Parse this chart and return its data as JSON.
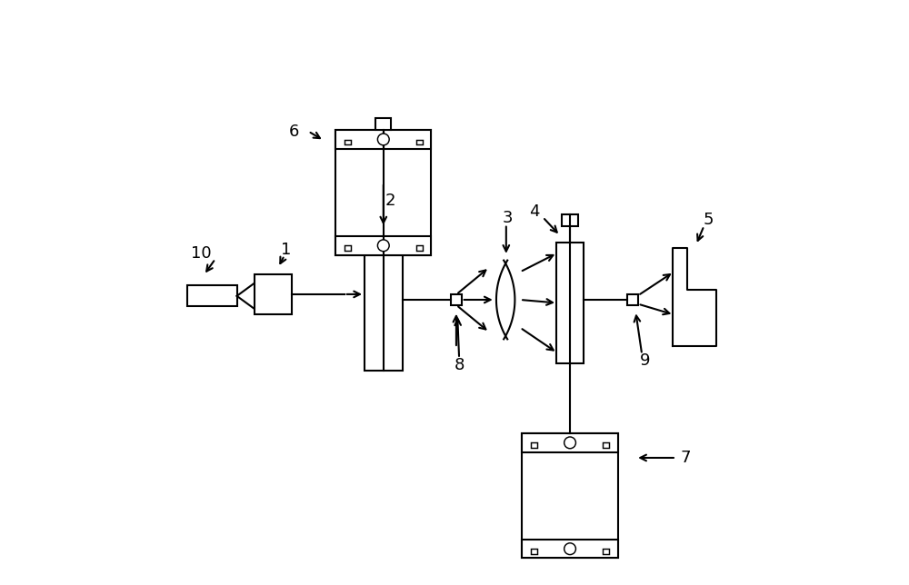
{
  "bg_color": "#ffffff",
  "line_color": "#000000",
  "fig_width": 10.0,
  "fig_height": 6.44,
  "lw": 1.5
}
